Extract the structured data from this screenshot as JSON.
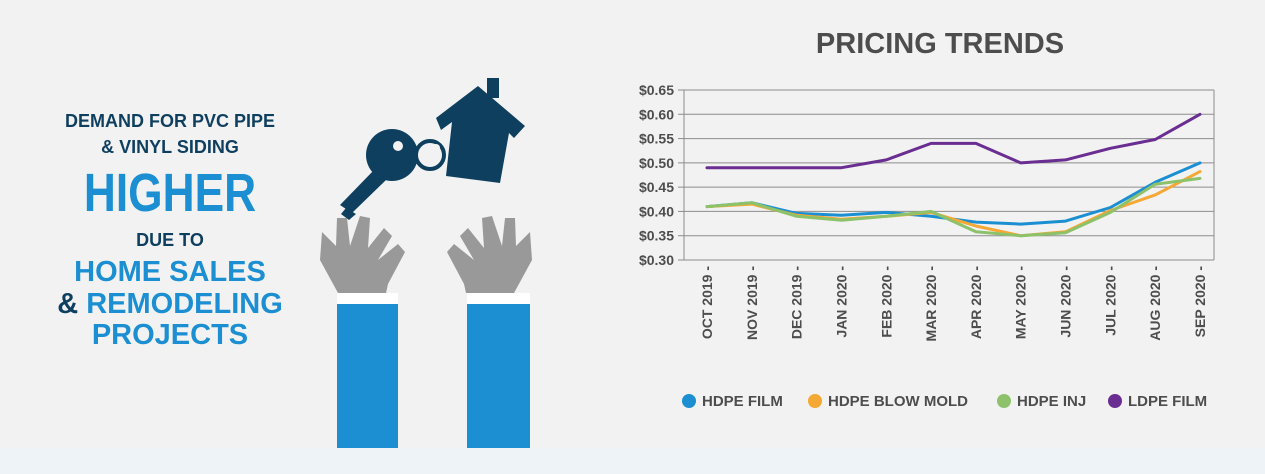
{
  "headline": {
    "line1": "DEMAND FOR PVC PIPE",
    "line2": "& VINYL SIDING",
    "big": "HIGHER",
    "line3": "DUE TO",
    "line4": "HOME SALES",
    "amp": "&",
    "line5": "REMODELING",
    "line6": "PROJECTS"
  },
  "colors": {
    "navy": "#0e3f5f",
    "blue": "#1b8fd2",
    "gray": "#999999",
    "hdpe_film": "#1b8fd2",
    "hdpe_blow_mold": "#f5a833",
    "hdpe_inj": "#8dc26b",
    "ldpe_film": "#6a2d91"
  },
  "icons": [
    "house-key-icon",
    "raised-hands-icon"
  ],
  "chart_data": {
    "type": "line",
    "title": "PRICING TRENDS",
    "xlabel": "",
    "ylabel": "",
    "ylim": [
      0.3,
      0.65
    ],
    "ytick_labels": [
      "$0.65",
      "$0.60",
      "$0.55",
      "$0.50",
      "$0.45",
      "$0.40",
      "$0.35",
      "$0.30"
    ],
    "yticks": [
      0.65,
      0.6,
      0.55,
      0.5,
      0.45,
      0.4,
      0.35,
      0.3
    ],
    "grid": true,
    "legend_position": "bottom",
    "categories": [
      "OCT 2019",
      "NOV 2019",
      "DEC 2019",
      "JAN 2020",
      "FEB 2020",
      "MAR 2020",
      "APR 2020",
      "MAY 2020",
      "JUN 2020",
      "JUL 2020",
      "AUG 2020",
      "SEP 2020"
    ],
    "series": [
      {
        "name": "HDPE FILM",
        "color": "#1b8fd2",
        "values": [
          0.41,
          0.418,
          0.396,
          0.392,
          0.398,
          0.39,
          0.378,
          0.374,
          0.38,
          0.408,
          0.46,
          0.5
        ]
      },
      {
        "name": "HDPE BLOW MOLD",
        "color": "#f5a833",
        "values": [
          0.41,
          0.415,
          0.392,
          0.384,
          0.39,
          0.398,
          0.37,
          0.35,
          0.358,
          0.402,
          0.434,
          0.482
        ]
      },
      {
        "name": "HDPE INJ",
        "color": "#8dc26b",
        "values": [
          0.41,
          0.418,
          0.39,
          0.382,
          0.39,
          0.4,
          0.358,
          0.35,
          0.356,
          0.398,
          0.456,
          0.468
        ]
      },
      {
        "name": "LDPE FILM",
        "color": "#6a2d91",
        "values": [
          0.49,
          0.49,
          0.49,
          0.49,
          0.506,
          0.54,
          0.54,
          0.5,
          0.506,
          0.53,
          0.548,
          0.6
        ]
      }
    ]
  }
}
